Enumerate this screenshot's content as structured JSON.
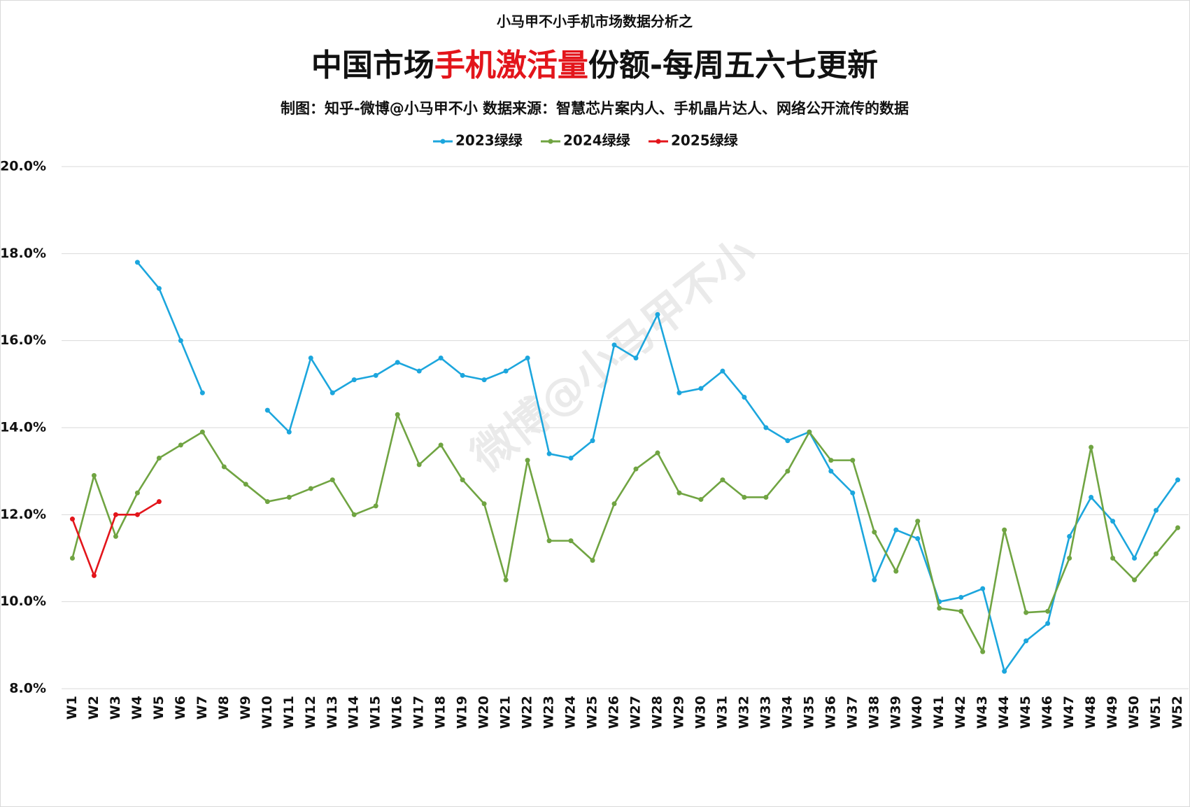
{
  "chart_data": {
    "type": "line",
    "supertitle": "小马甲不小手机市场数据分析之",
    "title_prefix": "中国市场",
    "title_highlight": "手机激活量",
    "title_suffix": "份额-每周五六七更新",
    "subtitle": "制图：知乎-微博@小马甲不小  数据来源：智慧芯片案内人、手机晶片达人、网络公开流传的数据",
    "watermark": "微博@小马甲不小",
    "categories": [
      "W1",
      "W2",
      "W3",
      "W4",
      "W5",
      "W6",
      "W7",
      "W8",
      "W9",
      "W10",
      "W11",
      "W12",
      "W13",
      "W14",
      "W15",
      "W16",
      "W17",
      "W18",
      "W19",
      "W20",
      "W21",
      "W22",
      "W23",
      "W24",
      "W25",
      "W26",
      "W27",
      "W28",
      "W29",
      "W30",
      "W31",
      "W32",
      "W33",
      "W34",
      "W35",
      "W36",
      "W37",
      "W38",
      "W39",
      "W40",
      "W41",
      "W42",
      "W43",
      "W44",
      "W45",
      "W46",
      "W47",
      "W48",
      "W49",
      "W50",
      "W51",
      "W52"
    ],
    "series": [
      {
        "name": "2023绿绿",
        "color": "#1ca6dd",
        "values": [
          null,
          null,
          null,
          17.8,
          17.2,
          16.0,
          14.8,
          null,
          null,
          14.4,
          13.9,
          15.6,
          14.8,
          15.1,
          15.2,
          15.5,
          15.3,
          15.6,
          15.2,
          15.1,
          15.3,
          15.6,
          13.4,
          13.3,
          13.7,
          15.9,
          15.6,
          16.6,
          14.8,
          14.9,
          15.3,
          14.7,
          14.0,
          13.7,
          13.9,
          13.0,
          12.5,
          10.5,
          11.65,
          11.45,
          10.0,
          10.1,
          10.3,
          8.4,
          9.1,
          9.5,
          11.5,
          12.4,
          11.85,
          11.0,
          12.1,
          12.8
        ]
      },
      {
        "name": "2024绿绿",
        "color": "#70a442",
        "values": [
          11.0,
          12.9,
          11.5,
          12.5,
          13.3,
          13.6,
          13.9,
          13.1,
          12.7,
          12.3,
          12.4,
          12.6,
          12.8,
          12.0,
          12.2,
          14.3,
          13.15,
          13.6,
          12.8,
          12.25,
          10.5,
          13.25,
          11.4,
          11.4,
          10.95,
          12.25,
          13.05,
          13.42,
          12.5,
          12.35,
          12.8,
          12.4,
          12.4,
          13.0,
          13.9,
          13.25,
          13.25,
          11.6,
          10.7,
          11.85,
          9.85,
          9.78,
          8.85,
          11.65,
          9.75,
          9.78,
          11.0,
          13.55,
          11.0,
          10.5,
          11.1,
          11.7
        ]
      },
      {
        "name": "2025绿绿",
        "color": "#e3151b",
        "values": [
          11.9,
          10.6,
          12.0,
          12.0,
          12.3,
          null,
          null,
          null,
          null,
          null,
          null,
          null,
          null,
          null,
          null,
          null,
          null,
          null,
          null,
          null,
          null,
          null,
          null,
          null,
          null,
          null,
          null,
          null,
          null,
          null,
          null,
          null,
          null,
          null,
          null,
          null,
          null,
          null,
          null,
          null,
          null,
          null,
          null,
          null,
          null,
          null,
          null,
          null,
          null,
          null,
          null,
          null
        ]
      }
    ],
    "ylim": [
      8,
      20
    ],
    "yticks": [
      {
        "value": 8,
        "label": "8.0%"
      },
      {
        "value": 10,
        "label": "10.0%"
      },
      {
        "value": 12,
        "label": "12.0%"
      },
      {
        "value": 14,
        "label": "14.0%"
      },
      {
        "value": 16,
        "label": "16.0%"
      },
      {
        "value": 18,
        "label": "18.0%"
      },
      {
        "value": 20,
        "label": "20.0%"
      }
    ],
    "grid": true,
    "legend": "top"
  }
}
